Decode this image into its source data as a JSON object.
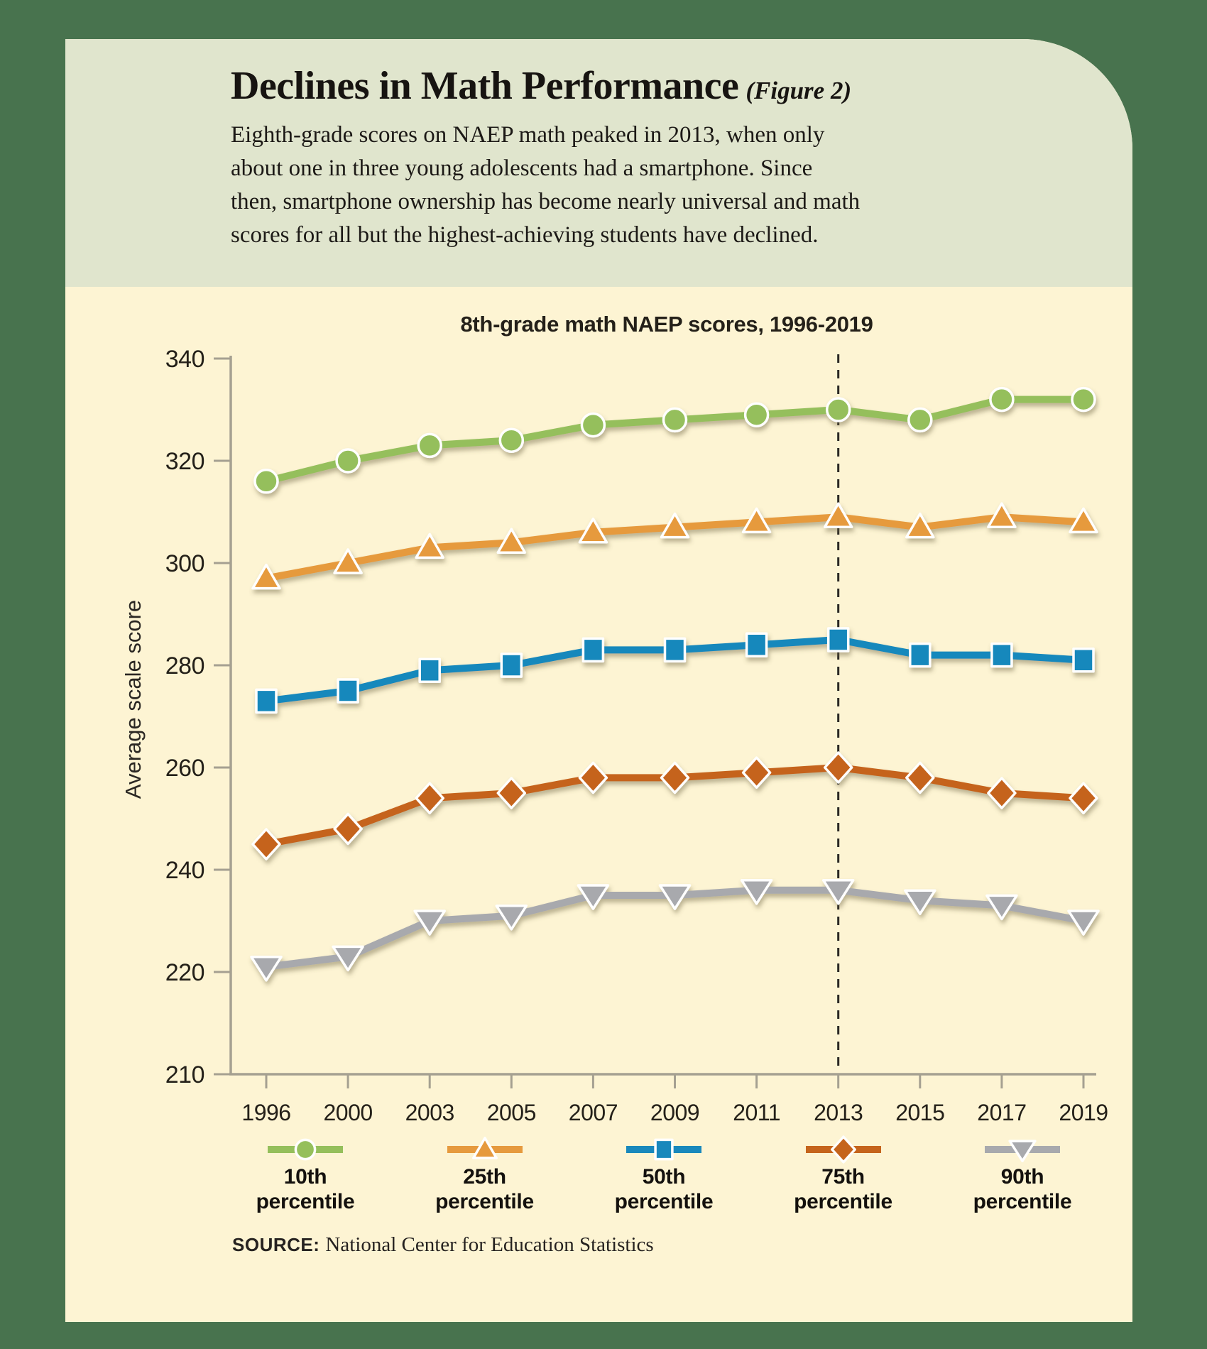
{
  "card": {
    "title": "Declines in Math Performance",
    "figure_label": "(Figure 2)",
    "subtitle_lines": [
      "Eighth-grade scores on NAEP math peaked in 2013, when only",
      "about one in three young adolescents had a smartphone. Since",
      "then, smartphone ownership has become nearly universal and math",
      "scores for all but the highest-achieving students have declined."
    ],
    "source_label": "SOURCE:",
    "source_text": "National Center for Education Statistics"
  },
  "chart_data": {
    "type": "line",
    "title": "8th-grade math NAEP scores, 1996-2019",
    "ylabel": "Average scale score",
    "categories": [
      "1996",
      "2000",
      "2003",
      "2005",
      "2007",
      "2009",
      "2011",
      "2013",
      "2015",
      "2017",
      "2019"
    ],
    "y_ticks": [
      340,
      320,
      300,
      280,
      260,
      240,
      220,
      210
    ],
    "ylim": [
      210,
      340
    ],
    "grid": false,
    "legend_position": "bottom",
    "annotation": {
      "vline_year": "2013",
      "style": "dashed-vertical-line"
    },
    "series": [
      {
        "name": "10th percentile",
        "marker": "circle",
        "color": "#95bf5b",
        "values": [
          316,
          320,
          323,
          324,
          327,
          328,
          329,
          330,
          328,
          332,
          332
        ]
      },
      {
        "name": "25th percentile",
        "marker": "triangle-up",
        "color": "#e69a3e",
        "values": [
          297,
          300,
          303,
          304,
          306,
          307,
          308,
          309,
          307,
          309,
          308
        ]
      },
      {
        "name": "50th percentile",
        "marker": "square",
        "color": "#1988bc",
        "values": [
          273,
          275,
          279,
          280,
          283,
          283,
          284,
          285,
          282,
          282,
          281
        ]
      },
      {
        "name": "75th percentile",
        "marker": "diamond",
        "color": "#c5641c",
        "values": [
          245,
          248,
          254,
          255,
          258,
          258,
          259,
          260,
          258,
          255,
          254
        ]
      },
      {
        "name": "90th percentile",
        "marker": "triangle-down",
        "color": "#a8a9ad",
        "values": [
          221,
          223,
          230,
          231,
          235,
          235,
          236,
          236,
          234,
          233,
          230
        ]
      }
    ]
  },
  "colors": {
    "page_bg": "#48734e",
    "card_bg": "#fdf4d3",
    "header_bg": "#e0e5cd",
    "axis": "#a5a091",
    "dash": "#2b2824",
    "ink": "#1e1b18"
  }
}
